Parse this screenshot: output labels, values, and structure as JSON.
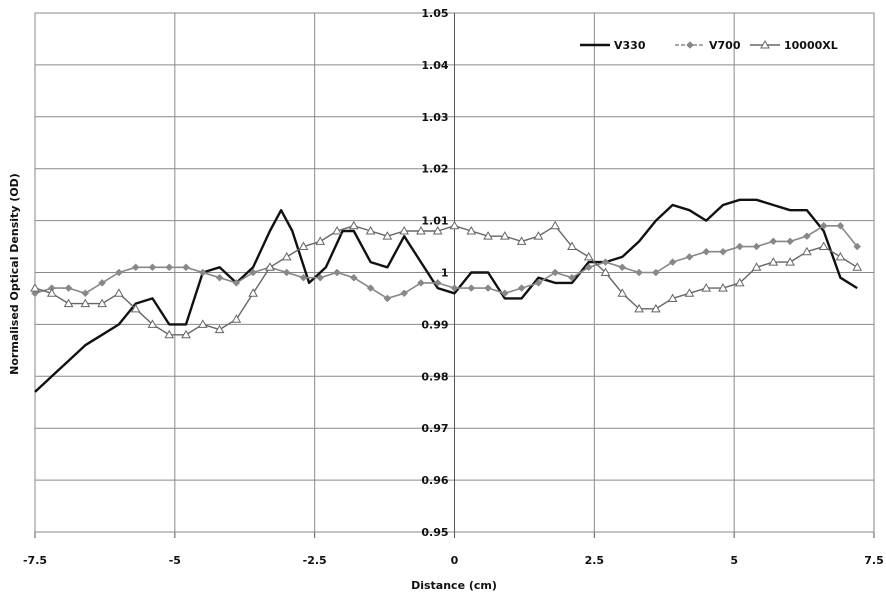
{
  "chart_data": {
    "type": "line",
    "title": "",
    "xlabel": "Distance (cm)",
    "ylabel": "Normalised Optical Density (OD)",
    "xlim": [
      -7.5,
      7.5
    ],
    "ylim": [
      0.95,
      1.05
    ],
    "x_ticks": [
      -7.5,
      -5,
      -2.5,
      0,
      2.5,
      5,
      7.5
    ],
    "x_tick_labels": [
      "-7.5",
      "-5",
      "-2.5",
      "0",
      "2.5",
      "5",
      "7.5"
    ],
    "y_ticks": [
      0.95,
      0.96,
      0.97,
      0.98,
      0.99,
      1.0,
      1.01,
      1.02,
      1.03,
      1.04,
      1.05
    ],
    "y_tick_labels": [
      "0.95",
      "0.96",
      "0.97",
      "0.98",
      "0.99",
      "1",
      "1.01",
      "1.02",
      "1.03",
      "1.04",
      "1.05"
    ],
    "grid": true,
    "legend_position": "top-right",
    "series": [
      {
        "name": "V330",
        "color": "#111111",
        "marker": "none",
        "x": [
          -7.5,
          -7.2,
          -6.9,
          -6.6,
          -6.3,
          -6.0,
          -5.7,
          -5.4,
          -5.1,
          -4.8,
          -4.5,
          -4.2,
          -3.9,
          -3.6,
          -3.3,
          -3.1,
          -2.9,
          -2.6,
          -2.3,
          -2.0,
          -1.8,
          -1.5,
          -1.2,
          -0.9,
          -0.6,
          -0.3,
          0.0,
          0.3,
          0.6,
          0.9,
          1.2,
          1.5,
          1.8,
          2.1,
          2.4,
          2.7,
          3.0,
          3.3,
          3.6,
          3.9,
          4.2,
          4.5,
          4.8,
          5.1,
          5.4,
          5.7,
          6.0,
          6.3,
          6.6,
          6.9,
          7.2
        ],
        "y": [
          0.977,
          0.98,
          0.983,
          0.986,
          0.988,
          0.99,
          0.994,
          0.995,
          0.99,
          0.99,
          1.0,
          1.001,
          0.998,
          1.001,
          1.008,
          1.012,
          1.008,
          0.998,
          1.001,
          1.008,
          1.008,
          1.002,
          1.001,
          1.007,
          1.002,
          0.997,
          0.996,
          1.0,
          1.0,
          0.995,
          0.995,
          0.999,
          0.998,
          0.998,
          1.002,
          1.002,
          1.003,
          1.006,
          1.01,
          1.013,
          1.012,
          1.01,
          1.013,
          1.014,
          1.014,
          1.013,
          1.012,
          1.012,
          1.008,
          0.999,
          0.997
        ]
      },
      {
        "name": "V700",
        "color": "#888888",
        "marker": "diamond",
        "x": [
          -7.5,
          -7.2,
          -6.9,
          -6.6,
          -6.3,
          -6.0,
          -5.7,
          -5.4,
          -5.1,
          -4.8,
          -4.5,
          -4.2,
          -3.9,
          -3.6,
          -3.3,
          -3.0,
          -2.7,
          -2.4,
          -2.1,
          -1.8,
          -1.5,
          -1.2,
          -0.9,
          -0.6,
          -0.3,
          0.0,
          0.3,
          0.6,
          0.9,
          1.2,
          1.5,
          1.8,
          2.1,
          2.4,
          2.7,
          3.0,
          3.3,
          3.6,
          3.9,
          4.2,
          4.5,
          4.8,
          5.1,
          5.4,
          5.7,
          6.0,
          6.3,
          6.6,
          6.9,
          7.2
        ],
        "y": [
          0.996,
          0.997,
          0.997,
          0.996,
          0.998,
          1.0,
          1.001,
          1.001,
          1.001,
          1.001,
          1.0,
          0.999,
          0.998,
          1.0,
          1.001,
          1.0,
          0.999,
          0.999,
          1.0,
          0.999,
          0.997,
          0.995,
          0.996,
          0.998,
          0.998,
          0.997,
          0.997,
          0.997,
          0.996,
          0.997,
          0.998,
          1.0,
          0.999,
          1.001,
          1.002,
          1.001,
          1.0,
          1.0,
          1.002,
          1.003,
          1.004,
          1.004,
          1.005,
          1.005,
          1.006,
          1.006,
          1.007,
          1.009,
          1.009,
          1.005
        ]
      },
      {
        "name": "10000XL",
        "color": "#666666",
        "marker": "triangle",
        "x": [
          -7.5,
          -7.2,
          -6.9,
          -6.6,
          -6.3,
          -6.0,
          -5.7,
          -5.4,
          -5.1,
          -4.8,
          -4.5,
          -4.2,
          -3.9,
          -3.6,
          -3.3,
          -3.0,
          -2.7,
          -2.4,
          -2.1,
          -1.8,
          -1.5,
          -1.2,
          -0.9,
          -0.6,
          -0.3,
          0.0,
          0.3,
          0.6,
          0.9,
          1.2,
          1.5,
          1.8,
          2.1,
          2.4,
          2.7,
          3.0,
          3.3,
          3.6,
          3.9,
          4.2,
          4.5,
          4.8,
          5.1,
          5.4,
          5.7,
          6.0,
          6.3,
          6.6,
          6.9,
          7.2
        ],
        "y": [
          0.997,
          0.996,
          0.994,
          0.994,
          0.994,
          0.996,
          0.993,
          0.99,
          0.988,
          0.988,
          0.99,
          0.989,
          0.991,
          0.996,
          1.001,
          1.003,
          1.005,
          1.006,
          1.008,
          1.009,
          1.008,
          1.007,
          1.008,
          1.008,
          1.008,
          1.009,
          1.008,
          1.007,
          1.007,
          1.006,
          1.007,
          1.009,
          1.005,
          1.003,
          1.0,
          0.996,
          0.993,
          0.993,
          0.995,
          0.996,
          0.997,
          0.997,
          0.998,
          1.001,
          1.002,
          1.002,
          1.004,
          1.005,
          1.003,
          1.001
        ]
      }
    ]
  }
}
